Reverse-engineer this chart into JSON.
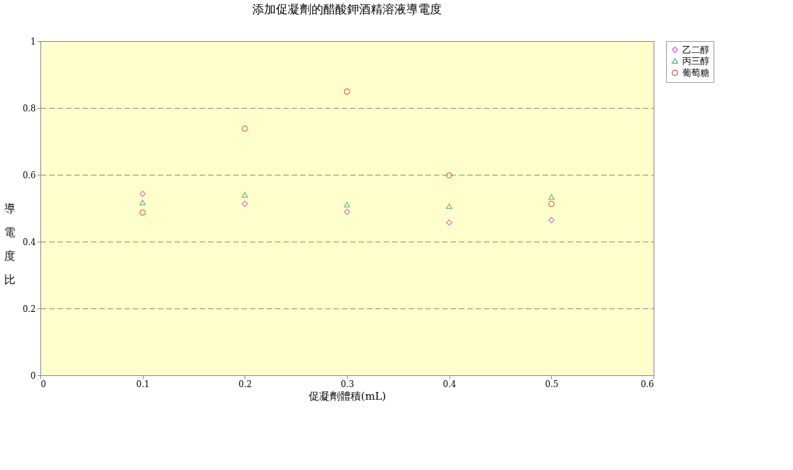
{
  "chart_data": {
    "type": "scatter",
    "title": "添加促凝劑的醋酸鉀酒精溶液導電度",
    "xlabel": "促凝劑體積(mL)",
    "ylabel": "導電度比",
    "x": [
      0.1,
      0.2,
      0.3,
      0.4,
      0.5
    ],
    "series": [
      {
        "name": "乙二醇",
        "color": "#cc33cc",
        "marker": "diamond",
        "values": [
          0.543,
          0.513,
          0.489,
          0.457,
          0.464
        ]
      },
      {
        "name": "丙三醇",
        "color": "#339966",
        "marker": "triangle",
        "values": [
          0.517,
          0.54,
          0.511,
          0.506,
          0.534
        ]
      },
      {
        "name": "葡萄糖",
        "color": "#cc3333",
        "marker": "circle",
        "values": [
          0.487,
          0.738,
          0.849,
          0.598,
          0.513
        ]
      }
    ],
    "xlim": [
      0,
      0.6
    ],
    "xticks": [
      0,
      0.1,
      0.2,
      0.3,
      0.4,
      0.5,
      0.6
    ],
    "ylim": [
      0,
      1
    ],
    "yticks": [
      0,
      0.2,
      0.4,
      0.6,
      0.8,
      1
    ],
    "grid": "y",
    "legend": "right"
  }
}
